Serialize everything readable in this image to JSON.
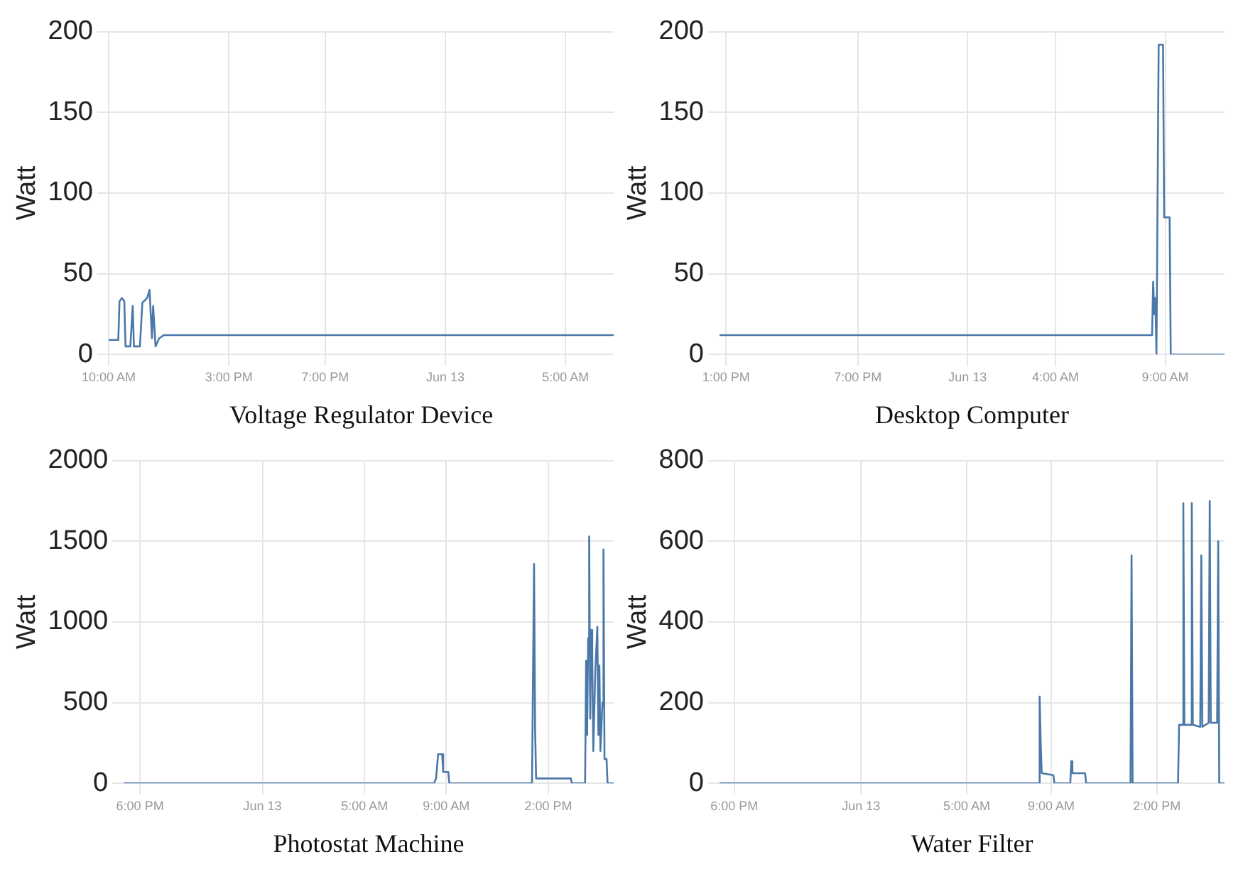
{
  "chart_data": [
    {
      "type": "line",
      "xlabel": "Voltage Regulator Device",
      "ylabel": "Watt",
      "color": "#4a78a8",
      "grid": true,
      "marker": "none",
      "xlim": [
        "--06-12T10:00",
        "--06-13T07:00"
      ],
      "xticks": [
        {
          "value": "--06-12T10:00",
          "label": "10:00 AM"
        },
        {
          "value": "--06-12T15:00",
          "label": "3:00 PM"
        },
        {
          "value": "--06-12T19:00",
          "label": "7:00 PM"
        },
        {
          "value": "--06-13T00:00",
          "label": "Jun 13"
        },
        {
          "value": "--06-13T05:00",
          "label": "5:00 AM"
        }
      ],
      "ylim": [
        0,
        200
      ],
      "yticks": [
        0,
        50,
        100,
        150,
        200
      ],
      "x": [
        "--06-12T10:00",
        "--06-12T10:24",
        "--06-12T10:27",
        "--06-12T10:33",
        "--06-12T10:39",
        "--06-12T10:42",
        "--06-12T10:54",
        "--06-12T11:00",
        "--06-12T11:03",
        "--06-12T11:18",
        "--06-12T11:24",
        "--06-12T11:36",
        "--06-12T11:42",
        "--06-12T11:48",
        "--06-12T11:51",
        "--06-12T11:57",
        "--06-12T12:06",
        "--06-12T12:18",
        "--06-13T07:00"
      ],
      "values": [
        9,
        9,
        33,
        35,
        33,
        5,
        5,
        30,
        5,
        5,
        32,
        35,
        40,
        10,
        30,
        5,
        10,
        12,
        12
      ]
    },
    {
      "type": "line",
      "xlabel": "Desktop Computer",
      "ylabel": "Watt",
      "color": "#4a78a8",
      "grid": true,
      "marker": "none",
      "xlim": [
        "--06-12T12:42",
        "--06-13T11:42"
      ],
      "xticks": [
        {
          "value": "--06-12T13:00",
          "label": "1:00 PM"
        },
        {
          "value": "--06-12T19:00",
          "label": "7:00 PM"
        },
        {
          "value": "--06-13T00:00",
          "label": "Jun 13"
        },
        {
          "value": "--06-13T04:00",
          "label": "4:00 AM"
        },
        {
          "value": "--06-13T09:00",
          "label": "9:00 AM"
        }
      ],
      "ylim": [
        0,
        200
      ],
      "yticks": [
        0,
        50,
        100,
        150,
        200
      ],
      "x": [
        "--06-12T12:42",
        "--06-13T08:24",
        "--06-13T08:27",
        "--06-13T08:30",
        "--06-13T08:33",
        "--06-13T08:36",
        "--06-13T08:39",
        "--06-13T08:42",
        "--06-13T08:54",
        "--06-13T08:57",
        "--06-13T09:12",
        "--06-13T09:15",
        "--06-13T11:42"
      ],
      "values": [
        12,
        12,
        45,
        25,
        35,
        0,
        0,
        192,
        192,
        85,
        85,
        0,
        0
      ]
    },
    {
      "type": "line",
      "xlabel": "Photostat Machine",
      "ylabel": "Watt",
      "color": "#4a78a8",
      "grid": true,
      "marker": "none",
      "xlim": [
        "--06-12T17:12",
        "--06-13T17:12"
      ],
      "xticks": [
        {
          "value": "--06-12T18:00",
          "label": "6:00 PM"
        },
        {
          "value": "--06-13T00:00",
          "label": "Jun 13"
        },
        {
          "value": "--06-13T05:00",
          "label": "5:00 AM"
        },
        {
          "value": "--06-13T09:00",
          "label": "9:00 AM"
        },
        {
          "value": "--06-13T14:00",
          "label": "2:00 PM"
        }
      ],
      "ylim": [
        0,
        2000
      ],
      "yticks": [
        0,
        500,
        1000,
        1500,
        2000
      ],
      "x": [
        "--06-12T17:12",
        "--06-13T08:24",
        "--06-13T08:30",
        "--06-13T08:36",
        "--06-13T08:48",
        "--06-13T08:51",
        "--06-13T09:06",
        "--06-13T09:09",
        "--06-13T13:12",
        "--06-13T13:18",
        "--06-13T13:21",
        "--06-13T13:24",
        "--06-13T15:06",
        "--06-13T15:09",
        "--06-13T15:48",
        "--06-13T15:51",
        "--06-13T15:54",
        "--06-13T15:57",
        "--06-13T16:00",
        "--06-13T16:03",
        "--06-13T16:06",
        "--06-13T16:09",
        "--06-13T16:12",
        "--06-13T16:18",
        "--06-13T16:24",
        "--06-13T16:27",
        "--06-13T16:30",
        "--06-13T16:33",
        "--06-13T16:39",
        "--06-13T16:42",
        "--06-13T16:45",
        "--06-13T16:51",
        "--06-13T16:54",
        "--06-13T17:12"
      ],
      "values": [
        0,
        0,
        30,
        180,
        180,
        70,
        70,
        0,
        0,
        1360,
        350,
        30,
        30,
        0,
        0,
        760,
        300,
        900,
        1530,
        400,
        950,
        800,
        200,
        700,
        970,
        300,
        730,
        200,
        500,
        1450,
        150,
        150,
        0,
        0
      ]
    },
    {
      "type": "line",
      "xlabel": "Water Filter",
      "ylabel": "Watt",
      "color": "#4a78a8",
      "grid": true,
      "marker": "none",
      "xlim": [
        "--06-12T17:18",
        "--06-13T17:12"
      ],
      "xticks": [
        {
          "value": "--06-12T18:00",
          "label": "6:00 PM"
        },
        {
          "value": "--06-13T00:00",
          "label": "Jun 13"
        },
        {
          "value": "--06-13T05:00",
          "label": "5:00 AM"
        },
        {
          "value": "--06-13T09:00",
          "label": "9:00 AM"
        },
        {
          "value": "--06-13T14:00",
          "label": "2:00 PM"
        }
      ],
      "ylim": [
        0,
        800
      ],
      "yticks": [
        0,
        200,
        400,
        600,
        800
      ],
      "x": [
        "--06-12T17:18",
        "--06-13T08:24",
        "--06-13T08:27",
        "--06-13T08:30",
        "--06-13T08:33",
        "--06-13T09:06",
        "--06-13T09:09",
        "--06-13T09:54",
        "--06-13T09:57",
        "--06-13T10:00",
        "--06-13T10:36",
        "--06-13T10:39",
        "--06-13T12:45",
        "--06-13T12:48",
        "--06-13T12:51",
        "--06-13T15:00",
        "--06-13T15:03",
        "--06-13T15:12",
        "--06-13T15:15",
        "--06-13T15:18",
        "--06-13T15:36",
        "--06-13T15:39",
        "--06-13T15:42",
        "--06-13T16:03",
        "--06-13T16:06",
        "--06-13T16:09",
        "--06-13T16:27",
        "--06-13T16:30",
        "--06-13T16:33",
        "--06-13T16:51",
        "--06-13T16:54",
        "--06-13T16:57",
        "--06-13T17:12"
      ],
      "values": [
        0,
        0,
        215,
        100,
        25,
        20,
        0,
        0,
        55,
        25,
        25,
        0,
        0,
        565,
        0,
        0,
        145,
        145,
        695,
        145,
        145,
        695,
        145,
        140,
        565,
        140,
        150,
        700,
        150,
        150,
        600,
        0,
        0
      ]
    }
  ]
}
